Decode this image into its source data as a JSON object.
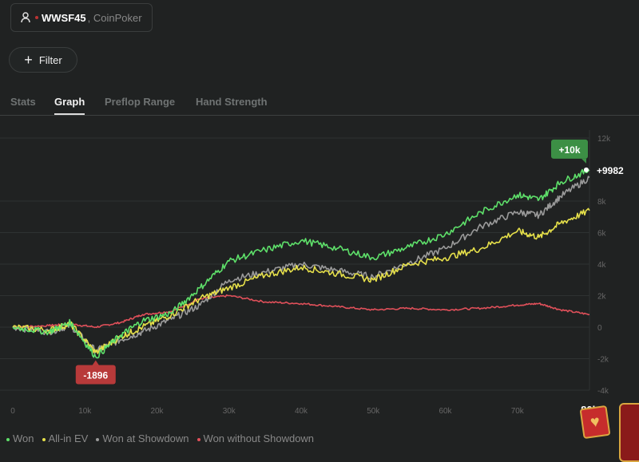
{
  "player": {
    "name": "WWSF45",
    "site": "CoinPoker",
    "icon": "user-icon"
  },
  "filter": {
    "label": "Filter",
    "icon": "plus-icon"
  },
  "tabs": [
    {
      "label": "Stats"
    },
    {
      "label": "Graph",
      "active": true
    },
    {
      "label": "Preflop Range"
    },
    {
      "label": "Hand Strength"
    }
  ],
  "chart_data": {
    "type": "line",
    "xlabel": "",
    "ylabel": "",
    "xlim": [
      0,
      80000
    ],
    "ylim": [
      -4000,
      12000
    ],
    "x_ticks": [
      "0",
      "10k",
      "20k",
      "30k",
      "40k",
      "50k",
      "60k",
      "70k",
      "80k"
    ],
    "y_ticks": [
      "12k",
      "8k",
      "6k",
      "4k",
      "2k",
      "0",
      "-2k",
      "-4k"
    ],
    "y_tick_values": [
      12000,
      8000,
      6000,
      4000,
      2000,
      0,
      -2000,
      -4000
    ],
    "grid": true,
    "annotations": {
      "max_label": "+10k",
      "final_label": "+9982",
      "min_label": "-1896"
    },
    "legend_position": "bottom-left",
    "x": [
      0,
      5000,
      8000,
      11500,
      15000,
      18000,
      22000,
      26000,
      30000,
      35000,
      40000,
      45000,
      50000,
      55000,
      60000,
      65000,
      70000,
      73000,
      76000,
      80000
    ],
    "series": [
      {
        "name": "Won",
        "color": "#5ee06a",
        "values": [
          0,
          -300,
          300,
          -1896,
          -500,
          400,
          900,
          2500,
          4200,
          4900,
          5500,
          5000,
          4400,
          5100,
          5900,
          7300,
          8400,
          8100,
          9200,
          9982
        ]
      },
      {
        "name": "All-in EV",
        "color": "#e6e04a",
        "values": [
          0,
          -200,
          200,
          -1600,
          -600,
          0,
          800,
          1800,
          2500,
          3300,
          3800,
          3400,
          3000,
          4000,
          4400,
          5000,
          6100,
          5700,
          6600,
          7400
        ]
      },
      {
        "name": "Won at Showdown",
        "color": "#9a9a9a",
        "values": [
          0,
          -300,
          100,
          -1500,
          -800,
          -300,
          500,
          1400,
          3000,
          3500,
          4000,
          3600,
          3200,
          4100,
          5000,
          6400,
          7300,
          7100,
          8300,
          9500
        ]
      },
      {
        "name": "Won without Showdown",
        "color": "#e0505a",
        "values": [
          0,
          100,
          200,
          0,
          300,
          800,
          1000,
          1800,
          2000,
          1600,
          1500,
          1300,
          1100,
          1200,
          1100,
          1200,
          1400,
          1500,
          1100,
          800
        ]
      }
    ]
  },
  "legend_colors": [
    "#5ee06a",
    "#e6e04a",
    "#9a9a9a",
    "#e0505a"
  ]
}
